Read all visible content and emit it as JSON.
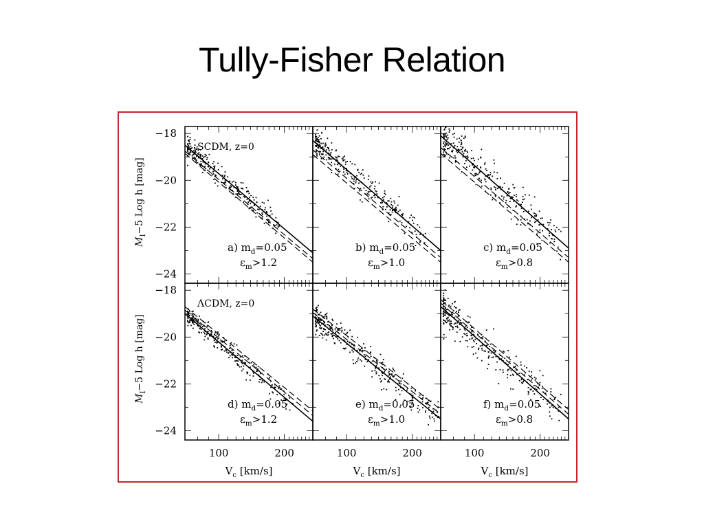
{
  "slide": {
    "title": "Tully-Fisher Relation"
  },
  "frame": {
    "border_color": "#c0272d"
  },
  "chart_data": {
    "type": "scatter",
    "grid": false,
    "xscale": "log",
    "xlim": [
      70,
      270
    ],
    "ylim": [
      -17.7,
      -24.4
    ],
    "x_tick_labels": [
      "100",
      "200"
    ],
    "y_tick_labels": [
      "-24",
      "-22",
      "-20",
      "-18"
    ],
    "xlabel": "V_c [km/s]",
    "ylabel": "M_I-5 Log h [mag]",
    "panels": [
      {
        "id": "a",
        "row": 0,
        "col": 0,
        "model_label": "SCDM, z=0",
        "label_line1": "a) m_d=0.05",
        "label_line2": "ε_m>1.2",
        "solid_line": {
          "x": [
            70,
            270
          ],
          "y": [
            -18.5,
            -23.1
          ]
        },
        "dashed_lines": [
          {
            "x": [
              70,
              270
            ],
            "y": [
              -18.75,
              -23.35
            ]
          },
          {
            "x": [
              70,
              270
            ],
            "y": [
              -18.85,
              -23.5
            ]
          }
        ],
        "scatter_sigma": 0.22,
        "n_points": 260,
        "point_x_range": [
          72,
          190
        ]
      },
      {
        "id": "b",
        "row": 0,
        "col": 1,
        "model_label": "",
        "label_line1": "b) m_d=0.05",
        "label_line2": "ε_m>1.0",
        "solid_line": {
          "x": [
            70,
            270
          ],
          "y": [
            -18.3,
            -23.0
          ]
        },
        "dashed_lines": [
          {
            "x": [
              70,
              270
            ],
            "y": [
              -18.7,
              -23.3
            ]
          },
          {
            "x": [
              70,
              270
            ],
            "y": [
              -18.9,
              -23.5
            ]
          }
        ],
        "scatter_sigma": 0.28,
        "n_points": 280,
        "point_x_range": [
          72,
          230
        ]
      },
      {
        "id": "c",
        "row": 0,
        "col": 2,
        "model_label": "",
        "label_line1": "c) m_d=0.05",
        "label_line2": "ε_m>0.8",
        "solid_line": {
          "x": [
            70,
            270
          ],
          "y": [
            -18.1,
            -22.9
          ]
        },
        "dashed_lines": [
          {
            "x": [
              70,
              270
            ],
            "y": [
              -18.6,
              -23.3
            ]
          },
          {
            "x": [
              70,
              270
            ],
            "y": [
              -18.85,
              -23.5
            ]
          }
        ],
        "scatter_sigma": 0.38,
        "n_points": 300,
        "point_x_range": [
          72,
          250
        ]
      },
      {
        "id": "d",
        "row": 1,
        "col": 0,
        "model_label": "ΛCDM, z=0",
        "label_line1": "d) m_d=0.05",
        "label_line2": "ε_m>1.2",
        "solid_line": {
          "x": [
            70,
            270
          ],
          "y": [
            -19.0,
            -23.6
          ]
        },
        "dashed_lines": [
          {
            "x": [
              70,
              270
            ],
            "y": [
              -18.85,
              -23.35
            ]
          },
          {
            "x": [
              70,
              270
            ],
            "y": [
              -18.7,
              -23.15
            ]
          }
        ],
        "scatter_sigma": 0.22,
        "n_points": 260,
        "point_x_range": [
          72,
          220
        ]
      },
      {
        "id": "e",
        "row": 1,
        "col": 1,
        "model_label": "",
        "label_line1": "e) m_d=0.05",
        "label_line2": "ε_m>1.0",
        "solid_line": {
          "x": [
            70,
            270
          ],
          "y": [
            -19.1,
            -23.5
          ]
        },
        "dashed_lines": [
          {
            "x": [
              70,
              270
            ],
            "y": [
              -18.95,
              -23.3
            ]
          },
          {
            "x": [
              70,
              270
            ],
            "y": [
              -18.8,
              -23.1
            ]
          }
        ],
        "scatter_sigma": 0.3,
        "n_points": 320,
        "point_x_range": [
          72,
          265
        ]
      },
      {
        "id": "f",
        "row": 1,
        "col": 2,
        "model_label": "",
        "label_line1": "f) m_d=0.05",
        "label_line2": "ε_m>0.8",
        "solid_line": {
          "x": [
            70,
            270
          ],
          "y": [
            -18.7,
            -23.5
          ]
        },
        "dashed_lines": [
          {
            "x": [
              70,
              270
            ],
            "y": [
              -18.55,
              -23.3
            ]
          },
          {
            "x": [
              70,
              270
            ],
            "y": [
              -18.4,
              -23.1
            ]
          }
        ],
        "scatter_sigma": 0.38,
        "n_points": 300,
        "point_x_range": [
          72,
          250
        ]
      }
    ]
  }
}
